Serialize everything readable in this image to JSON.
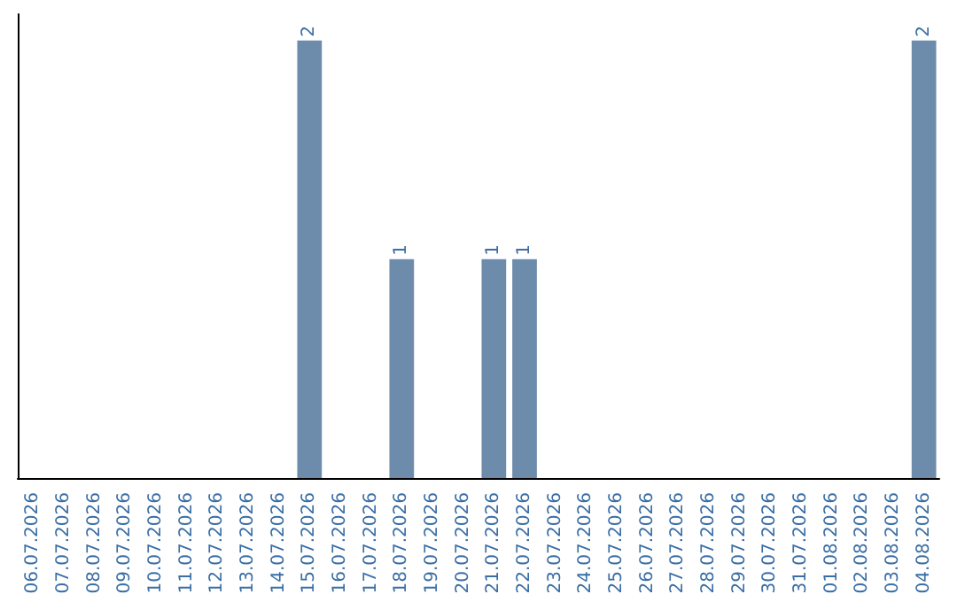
{
  "chart_data": {
    "type": "bar",
    "categories": [
      "06.07.2026",
      "07.07.2026",
      "08.07.2026",
      "09.07.2026",
      "10.07.2026",
      "11.07.2026",
      "12.07.2026",
      "13.07.2026",
      "14.07.2026",
      "15.07.2026",
      "16.07.2026",
      "17.07.2026",
      "18.07.2026",
      "19.07.2026",
      "20.07.2026",
      "21.07.2026",
      "22.07.2026",
      "23.07.2026",
      "24.07.2026",
      "25.07.2026",
      "26.07.2026",
      "27.07.2026",
      "28.07.2026",
      "29.07.2026",
      "30.07.2026",
      "31.07.2026",
      "01.08.2026",
      "02.08.2026",
      "03.08.2026",
      "04.08.2026"
    ],
    "values": [
      0,
      0,
      0,
      0,
      0,
      0,
      0,
      0,
      0,
      2,
      0,
      0,
      1,
      0,
      0,
      1,
      1,
      0,
      0,
      0,
      0,
      0,
      0,
      0,
      0,
      0,
      0,
      0,
      0,
      2
    ],
    "value_labels": [
      null,
      null,
      null,
      null,
      null,
      null,
      null,
      null,
      null,
      "2",
      null,
      null,
      "1",
      null,
      null,
      "1",
      "1",
      null,
      null,
      null,
      null,
      null,
      null,
      null,
      null,
      null,
      null,
      null,
      null,
      "2"
    ],
    "color": "#6d8cab",
    "grid": false,
    "tick_labels": "x"
  }
}
